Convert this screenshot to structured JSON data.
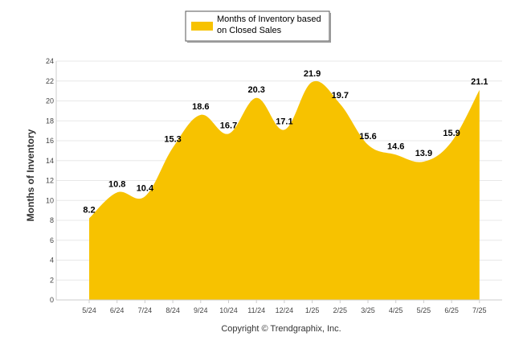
{
  "chart_data": {
    "type": "area",
    "title": "",
    "xlabel": "",
    "ylabel": "Months of Inventory",
    "ylim": [
      0,
      24
    ],
    "yticks": [
      0,
      2,
      4,
      6,
      8,
      10,
      12,
      14,
      16,
      18,
      20,
      22,
      24
    ],
    "categories": [
      "5/24",
      "6/24",
      "7/24",
      "8/24",
      "9/24",
      "10/24",
      "11/24",
      "12/24",
      "1/25",
      "2/25",
      "3/25",
      "4/25",
      "5/25",
      "6/25",
      "7/25"
    ],
    "series": [
      {
        "name": "Months of Inventory based on Closed Sales",
        "legend_lines": [
          "Months of Inventory based",
          "on Closed Sales"
        ],
        "values": [
          8.2,
          10.8,
          10.4,
          15.3,
          18.6,
          16.7,
          20.3,
          17.1,
          21.9,
          19.7,
          15.6,
          14.6,
          13.9,
          15.9,
          21.1
        ],
        "labels": [
          "8.2",
          "10.8",
          "10.4",
          "15.3",
          "18.6",
          "16.7",
          "20.3",
          "17.1",
          "21.9",
          "19.7",
          "15.6",
          "14.6",
          "13.9",
          "15.9",
          "21.1"
        ],
        "color": "#F7C200"
      }
    ],
    "grid": true,
    "legend_position": "top-center",
    "gridline_color": "#E8E8E8",
    "axis_color": "#CCCCCC"
  },
  "footer": {
    "copyright": "Copyright © Trendgraphix, Inc."
  }
}
